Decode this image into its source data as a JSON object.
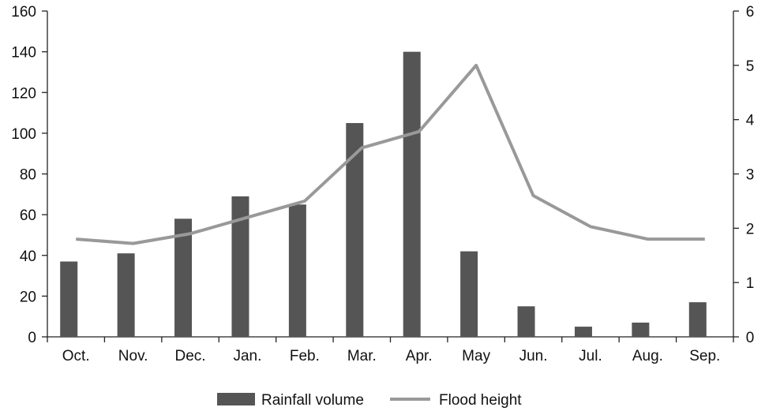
{
  "chart_data": {
    "type": "bar",
    "categories": [
      "Oct.",
      "Nov.",
      "Dec.",
      "Jan.",
      "Feb.",
      "Mar.",
      "Apr.",
      "May",
      "Jun.",
      "Jul.",
      "Aug.",
      "Sep."
    ],
    "series": [
      {
        "name": "Rainfall volume",
        "type": "bar",
        "axis": "left",
        "color": "#555555",
        "values": [
          37,
          41,
          58,
          69,
          65,
          105,
          140,
          42,
          15,
          5,
          7,
          17
        ]
      },
      {
        "name": "Flood height",
        "type": "line",
        "axis": "right",
        "color": "#999999",
        "values": [
          1.8,
          1.72,
          1.9,
          2.2,
          2.5,
          3.48,
          3.78,
          5.0,
          2.6,
          2.03,
          1.8,
          1.8
        ]
      }
    ],
    "y_left": {
      "min": 0,
      "max": 160,
      "ticks": [
        0,
        20,
        40,
        60,
        80,
        100,
        120,
        140,
        160
      ]
    },
    "y_right": {
      "min": 0,
      "max": 6,
      "ticks": [
        0,
        1,
        2,
        3,
        4,
        5,
        6
      ]
    },
    "title": "",
    "xlabel": "",
    "ylabel": "",
    "legend": {
      "position": "bottom"
    },
    "grid": false
  }
}
